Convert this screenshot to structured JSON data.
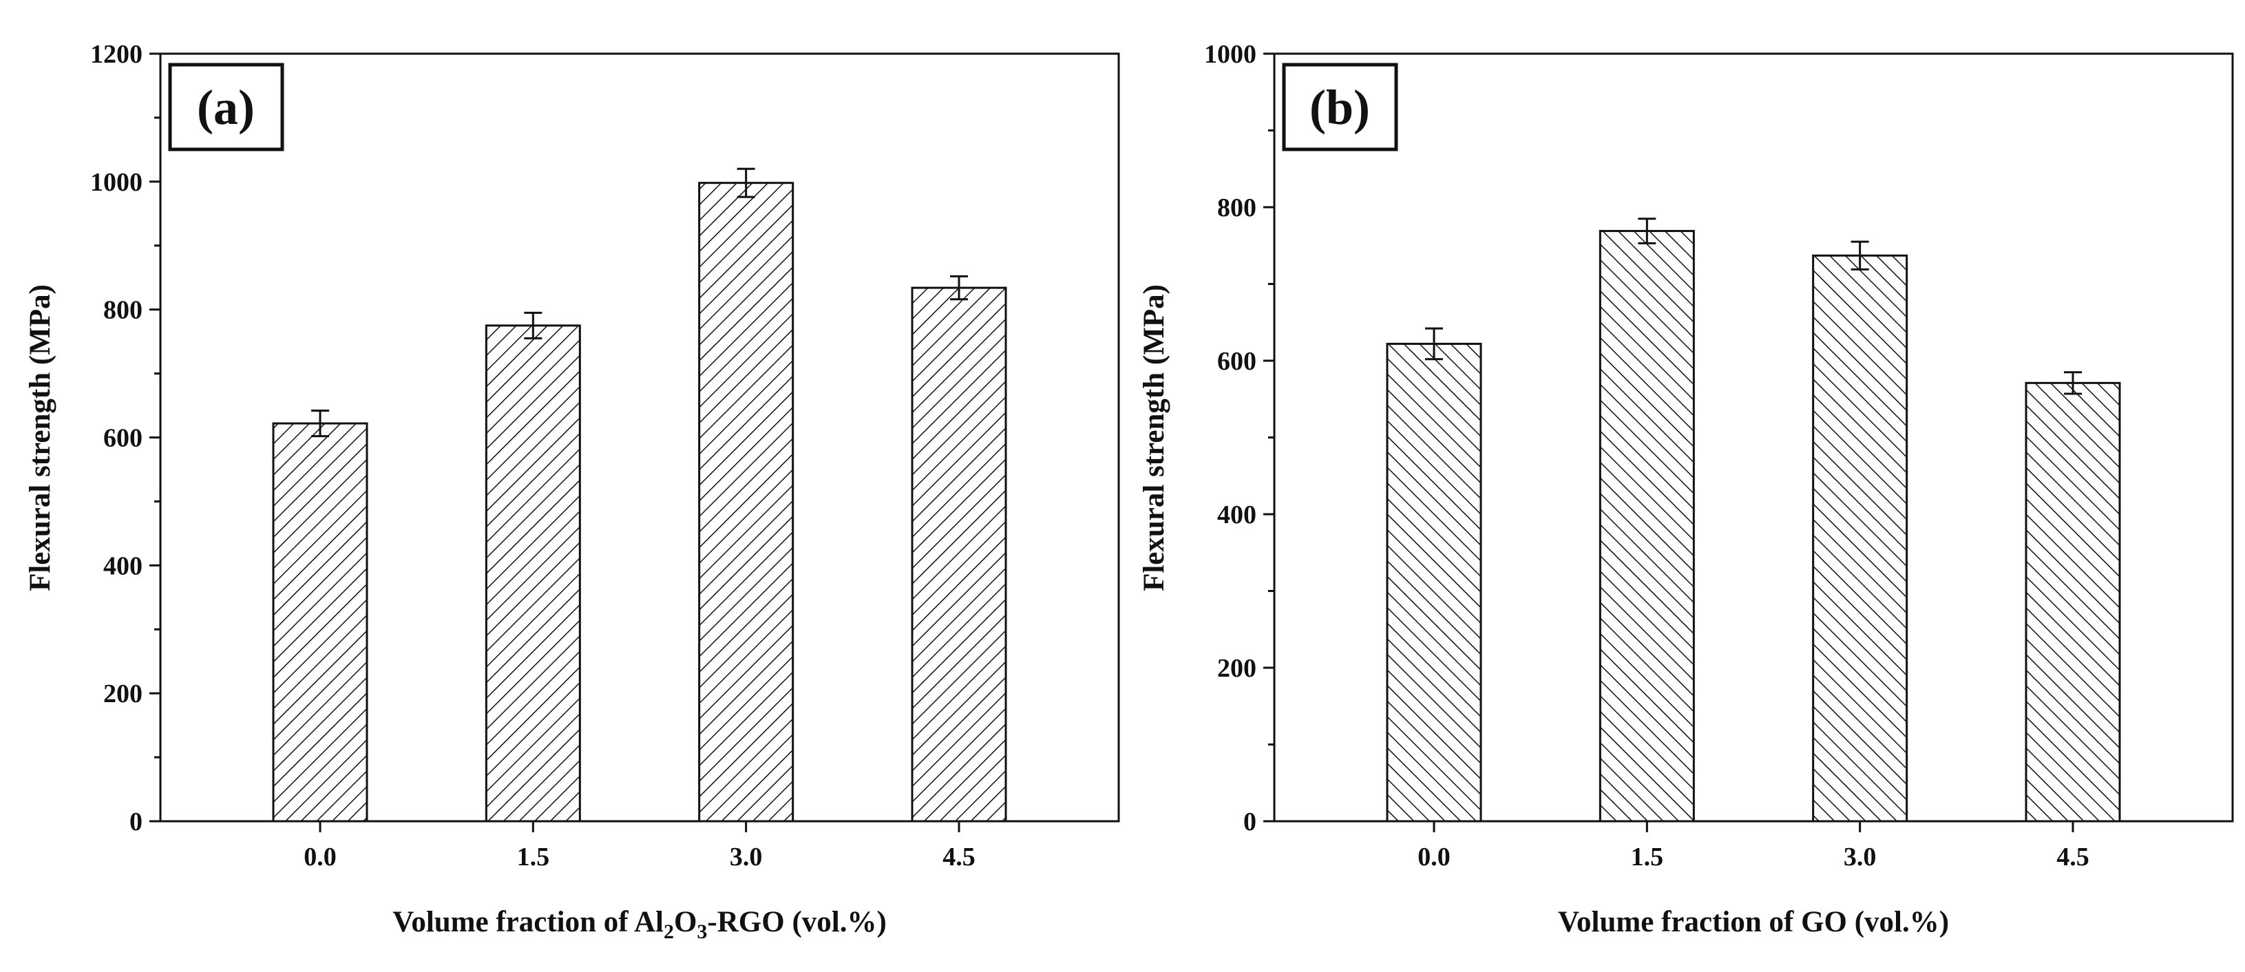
{
  "chart_data": [
    {
      "type": "bar",
      "panel_label": "(a)",
      "categories": [
        "0.0",
        "1.5",
        "3.0",
        "4.5"
      ],
      "values": [
        622,
        775,
        998,
        834
      ],
      "errors": [
        20,
        20,
        22,
        18
      ],
      "ylim": [
        0,
        1200
      ],
      "yticks": [
        "0",
        "200",
        "400",
        "600",
        "800",
        "1000",
        "1200"
      ],
      "ylabel": "Flexural strength (MPa)",
      "xlabel": {
        "prefix": "Volume fraction of Al",
        "sub1": "2",
        "mid": "O",
        "sub2": "3",
        "suffix": "-RGO (vol.%)"
      },
      "hatch": "forward-diagonal"
    },
    {
      "type": "bar",
      "panel_label": "(b)",
      "categories": [
        "0.0",
        "1.5",
        "3.0",
        "4.5"
      ],
      "values": [
        622,
        769,
        737,
        571
      ],
      "errors": [
        20,
        16,
        18,
        14
      ],
      "ylim": [
        0,
        1000
      ],
      "yticks": [
        "0",
        "200",
        "400",
        "600",
        "800",
        "1000"
      ],
      "ylabel": "Flexural strength (MPa)",
      "xlabel": {
        "prefix": "Volume fraction of GO (vol.%)",
        "sub1": "",
        "mid": "",
        "sub2": "",
        "suffix": ""
      },
      "hatch": "back-diagonal"
    }
  ],
  "colors": {
    "ink": "#111111",
    "background": "#ffffff"
  }
}
